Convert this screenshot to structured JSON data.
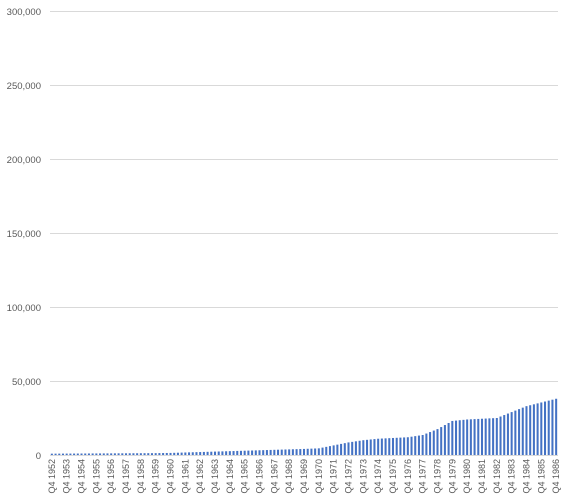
{
  "chart_data": {
    "type": "bar",
    "title": "",
    "xlabel": "",
    "ylabel": "",
    "ylim": [
      0,
      300000
    ],
    "yticks": [
      0,
      50000,
      100000,
      150000,
      200000,
      250000,
      300000
    ],
    "ytick_labels": [
      "0",
      "50,000",
      "100,000",
      "150,000",
      "200,000",
      "250,000",
      "300,000"
    ],
    "grid": "horizontal",
    "legend": "none",
    "bar_color": "#4472c4",
    "xtick_labels": [
      "Q4 1952",
      "Q4 1953",
      "Q4 1954",
      "Q4 1955",
      "Q4 1956",
      "Q4 1957",
      "Q4 1958",
      "Q4 1959",
      "Q4 1960",
      "Q4 1961",
      "Q4 1962",
      "Q4 1963",
      "Q4 1964",
      "Q4 1965",
      "Q4 1966",
      "Q4 1967",
      "Q4 1968",
      "Q4 1969",
      "Q4 1970",
      "Q4 1971",
      "Q4 1972",
      "Q4 1973",
      "Q4 1974",
      "Q4 1975",
      "Q4 1976",
      "Q4 1977",
      "Q4 1978",
      "Q4 1979",
      "Q4 1980",
      "Q4 1981",
      "Q4 1982",
      "Q4 1983",
      "Q4 1984",
      "Q4 1985",
      "Q4 1986"
    ],
    "start_year": 1952,
    "quarters_per_year": 4,
    "annual_q4_values": [
      900,
      950,
      1000,
      1050,
      1100,
      1150,
      1200,
      1250,
      1400,
      1700,
      2000,
      2300,
      2600,
      2900,
      3200,
      3500,
      3800,
      4100,
      4500,
      6500,
      8500,
      10000,
      11000,
      11500,
      12000,
      13500,
      17500,
      23000,
      24000,
      24500,
      25000,
      29000,
      33000,
      35500,
      38000
    ]
  }
}
